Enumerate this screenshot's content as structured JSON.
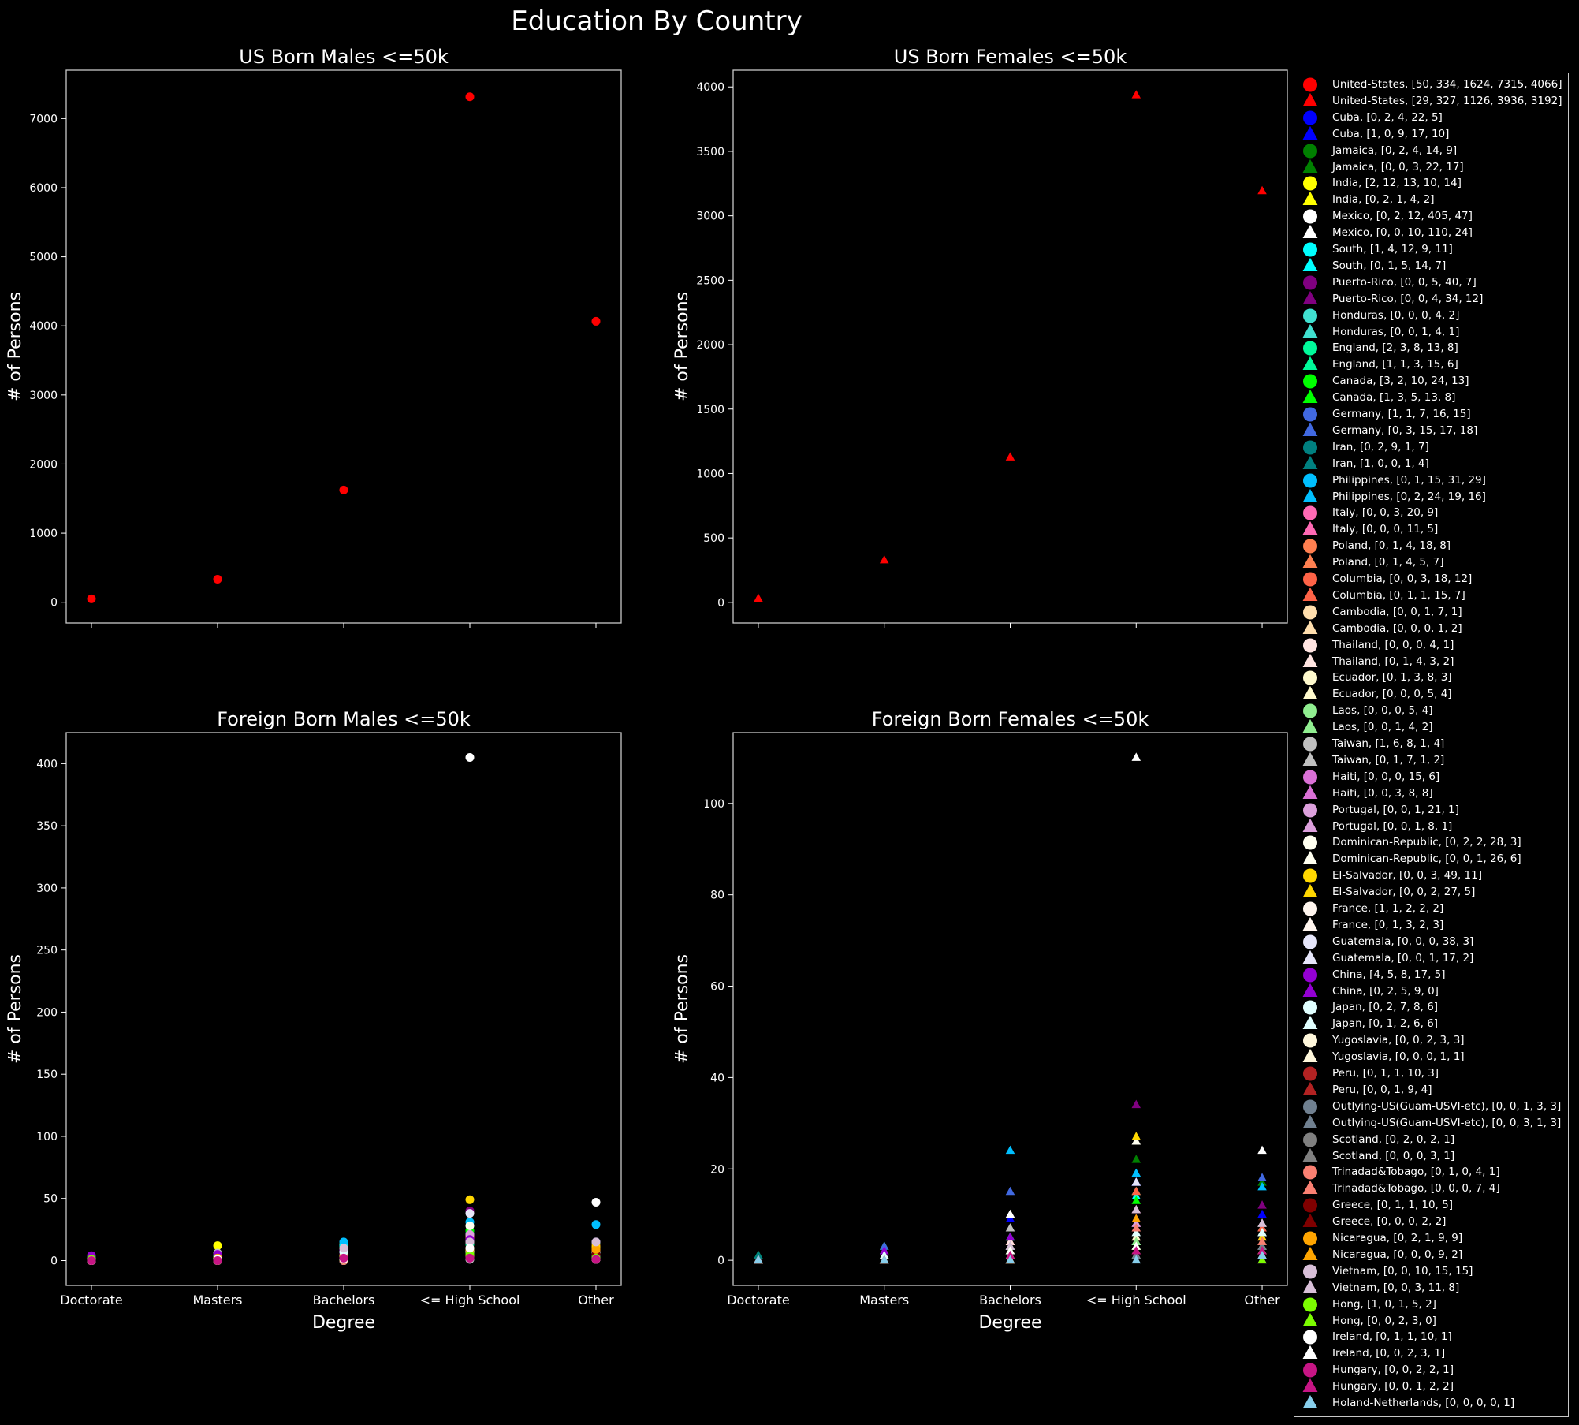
{
  "figure_title": "Education By Country",
  "chart_data": [
    {
      "type": "scatter",
      "title": "US Born Males <=50k",
      "xlabel": "",
      "ylabel": "# of Persons",
      "categories": [
        "Doctorate",
        "Masters",
        "Bachelors",
        "<= High School",
        "Other"
      ],
      "show_xticklabels": false,
      "yticks": [
        0,
        1000,
        2000,
        3000,
        4000,
        5000,
        6000,
        7000
      ],
      "ylim": [
        -300,
        7700
      ],
      "marker": "circle",
      "series_group": "males"
    },
    {
      "type": "scatter",
      "title": "US Born Females <=50k",
      "xlabel": "",
      "ylabel": "# of Persons",
      "categories": [
        "Doctorate",
        "Masters",
        "Bachelors",
        "<= High School",
        "Other"
      ],
      "show_xticklabels": false,
      "yticks": [
        0,
        500,
        1000,
        1500,
        2000,
        2500,
        3000,
        3500,
        4000
      ],
      "ylim": [
        -160,
        4130
      ],
      "marker": "triangle",
      "series_group": "females"
    },
    {
      "type": "scatter",
      "title": "Foreign Born Males <=50k",
      "xlabel": "Degree",
      "ylabel": "# of Persons",
      "categories": [
        "Doctorate",
        "Masters",
        "Bachelors",
        "<= High School",
        "Other"
      ],
      "show_xticklabels": true,
      "yticks": [
        0,
        50,
        100,
        150,
        200,
        250,
        300,
        350,
        400
      ],
      "ylim": [
        -20,
        425
      ],
      "marker": "circle",
      "series_group": "males_foreign"
    },
    {
      "type": "scatter",
      "title": "Foreign Born Females <=50k",
      "xlabel": "Degree",
      "ylabel": "# of Persons",
      "categories": [
        "Doctorate",
        "Masters",
        "Bachelors",
        "<= High School",
        "Other"
      ],
      "show_xticklabels": true,
      "yticks": [
        0,
        20,
        40,
        60,
        80,
        100
      ],
      "ylim": [
        -5.5,
        115.5
      ],
      "marker": "triangle",
      "series_group": "females_foreign"
    }
  ],
  "countries": [
    {
      "name": "United-States",
      "color": "#ff0000",
      "males": [
        50,
        334,
        1624,
        7315,
        4066
      ],
      "females": [
        29,
        327,
        1126,
        3936,
        3192
      ]
    },
    {
      "name": "Cuba",
      "color": "#0000ff",
      "males": [
        0,
        2,
        4,
        22,
        5
      ],
      "females": [
        1,
        0,
        9,
        17,
        10
      ]
    },
    {
      "name": "Jamaica",
      "color": "#008000",
      "males": [
        0,
        2,
        4,
        14,
        9
      ],
      "females": [
        0,
        0,
        3,
        22,
        17
      ]
    },
    {
      "name": "India",
      "color": "#ffff00",
      "males": [
        2,
        12,
        13,
        10,
        14
      ],
      "females": [
        0,
        2,
        1,
        4,
        2
      ]
    },
    {
      "name": "Mexico",
      "color": "#ffffff",
      "males": [
        0,
        2,
        12,
        405,
        47
      ],
      "females": [
        0,
        0,
        10,
        110,
        24
      ]
    },
    {
      "name": "South",
      "color": "#00ffff",
      "males": [
        1,
        4,
        12,
        9,
        11
      ],
      "females": [
        0,
        1,
        5,
        14,
        7
      ]
    },
    {
      "name": "Puerto-Rico",
      "color": "#800080",
      "males": [
        0,
        0,
        5,
        40,
        7
      ],
      "females": [
        0,
        0,
        4,
        34,
        12
      ]
    },
    {
      "name": "Honduras",
      "color": "#40e0d0",
      "males": [
        0,
        0,
        0,
        4,
        2
      ],
      "females": [
        0,
        0,
        1,
        4,
        1
      ]
    },
    {
      "name": "England",
      "color": "#00fa9a",
      "males": [
        2,
        3,
        8,
        13,
        8
      ],
      "females": [
        1,
        1,
        3,
        15,
        6
      ]
    },
    {
      "name": "Canada",
      "color": "#00ff00",
      "males": [
        3,
        2,
        10,
        24,
        13
      ],
      "females": [
        1,
        3,
        5,
        13,
        8
      ]
    },
    {
      "name": "Germany",
      "color": "#4169e1",
      "males": [
        1,
        1,
        7,
        16,
        15
      ],
      "females": [
        0,
        3,
        15,
        17,
        18
      ]
    },
    {
      "name": "Iran",
      "color": "#008080",
      "males": [
        0,
        2,
        9,
        1,
        7
      ],
      "females": [
        1,
        0,
        0,
        1,
        4
      ]
    },
    {
      "name": "Philippines",
      "color": "#00bfff",
      "males": [
        0,
        1,
        15,
        31,
        29
      ],
      "females": [
        0,
        2,
        24,
        19,
        16
      ]
    },
    {
      "name": "Italy",
      "color": "#ff69b4",
      "males": [
        0,
        0,
        3,
        20,
        9
      ],
      "females": [
        0,
        0,
        0,
        11,
        5
      ]
    },
    {
      "name": "Poland",
      "color": "#ff7f50",
      "males": [
        0,
        1,
        4,
        18,
        8
      ],
      "females": [
        0,
        1,
        4,
        5,
        7
      ]
    },
    {
      "name": "Columbia",
      "color": "#ff6347",
      "males": [
        0,
        0,
        3,
        18,
        12
      ],
      "females": [
        0,
        1,
        1,
        15,
        7
      ]
    },
    {
      "name": "Cambodia",
      "color": "#ffdead",
      "males": [
        0,
        0,
        1,
        7,
        1
      ],
      "females": [
        0,
        0,
        0,
        1,
        2
      ]
    },
    {
      "name": "Thailand",
      "color": "#ffe4e1",
      "males": [
        0,
        0,
        0,
        4,
        1
      ],
      "females": [
        0,
        1,
        4,
        3,
        2
      ]
    },
    {
      "name": "Ecuador",
      "color": "#fffacd",
      "males": [
        0,
        1,
        3,
        8,
        3
      ],
      "females": [
        0,
        0,
        0,
        5,
        4
      ]
    },
    {
      "name": "Laos",
      "color": "#90ee90",
      "males": [
        0,
        0,
        0,
        5,
        4
      ],
      "females": [
        0,
        0,
        1,
        4,
        2
      ]
    },
    {
      "name": "Taiwan",
      "color": "#c0c0c0",
      "males": [
        1,
        6,
        8,
        1,
        4
      ],
      "females": [
        0,
        1,
        7,
        1,
        2
      ]
    },
    {
      "name": "Haiti",
      "color": "#da70d6",
      "males": [
        0,
        0,
        0,
        15,
        6
      ],
      "females": [
        0,
        0,
        3,
        8,
        8
      ]
    },
    {
      "name": "Portugal",
      "color": "#dda0dd",
      "males": [
        0,
        0,
        1,
        21,
        1
      ],
      "females": [
        0,
        0,
        1,
        8,
        1
      ]
    },
    {
      "name": "Dominican-Republic",
      "color": "#fffff0",
      "males": [
        0,
        2,
        2,
        28,
        3
      ],
      "females": [
        0,
        0,
        1,
        26,
        6
      ]
    },
    {
      "name": "El-Salvador",
      "color": "#ffd700",
      "males": [
        0,
        0,
        3,
        49,
        11
      ],
      "females": [
        0,
        0,
        2,
        27,
        5
      ]
    },
    {
      "name": "France",
      "color": "#fff5ee",
      "males": [
        1,
        1,
        2,
        2,
        2
      ],
      "females": [
        0,
        1,
        3,
        2,
        3
      ]
    },
    {
      "name": "Guatemala",
      "color": "#e6e6fa",
      "males": [
        0,
        0,
        0,
        38,
        3
      ],
      "females": [
        0,
        0,
        1,
        17,
        2
      ]
    },
    {
      "name": "China",
      "color": "#9400d3",
      "males": [
        4,
        5,
        8,
        17,
        5
      ],
      "females": [
        0,
        2,
        5,
        9,
        0
      ]
    },
    {
      "name": "Japan",
      "color": "#e0ffff",
      "males": [
        0,
        2,
        7,
        8,
        6
      ],
      "females": [
        0,
        1,
        2,
        6,
        6
      ]
    },
    {
      "name": "Yugoslavia",
      "color": "#fff8dc",
      "males": [
        0,
        0,
        2,
        3,
        3
      ],
      "females": [
        0,
        0,
        0,
        1,
        1
      ]
    },
    {
      "name": "Peru",
      "color": "#b22222",
      "males": [
        0,
        1,
        1,
        10,
        3
      ],
      "females": [
        0,
        0,
        1,
        9,
        4
      ]
    },
    {
      "name": "Outlying-US(Guam-USVI-etc)",
      "color": "#708090",
      "males": [
        0,
        0,
        1,
        3,
        3
      ],
      "females": [
        0,
        0,
        3,
        1,
        3
      ]
    },
    {
      "name": "Scotland",
      "color": "#808080",
      "males": [
        0,
        2,
        0,
        2,
        1
      ],
      "females": [
        0,
        0,
        0,
        3,
        1
      ]
    },
    {
      "name": "Trinadad&Tobago",
      "color": "#fa8072",
      "males": [
        0,
        1,
        0,
        4,
        1
      ],
      "females": [
        0,
        0,
        0,
        7,
        4
      ]
    },
    {
      "name": "Greece",
      "color": "#800000",
      "males": [
        0,
        1,
        1,
        10,
        5
      ],
      "females": [
        0,
        0,
        0,
        2,
        2
      ]
    },
    {
      "name": "Nicaragua",
      "color": "#ffa500",
      "males": [
        0,
        2,
        1,
        9,
        9
      ],
      "females": [
        0,
        0,
        0,
        9,
        2
      ]
    },
    {
      "name": "Vietnam",
      "color": "#d8bfd8",
      "males": [
        0,
        0,
        10,
        15,
        15
      ],
      "females": [
        0,
        0,
        3,
        11,
        8
      ]
    },
    {
      "name": "Hong",
      "color": "#7cfc00",
      "males": [
        1,
        0,
        1,
        5,
        2
      ],
      "females": [
        0,
        0,
        2,
        3,
        0
      ]
    },
    {
      "name": "Ireland",
      "color": "#ffffff",
      "males": [
        0,
        1,
        1,
        10,
        1
      ],
      "females": [
        0,
        0,
        2,
        3,
        1
      ]
    },
    {
      "name": "Hungary",
      "color": "#c71585",
      "males": [
        0,
        0,
        2,
        2,
        1
      ],
      "females": [
        0,
        0,
        1,
        2,
        2
      ]
    },
    {
      "name": "Holand-Netherlands",
      "color": "#87ceeb",
      "males": null,
      "females": [
        0,
        0,
        0,
        0,
        1
      ]
    }
  ]
}
